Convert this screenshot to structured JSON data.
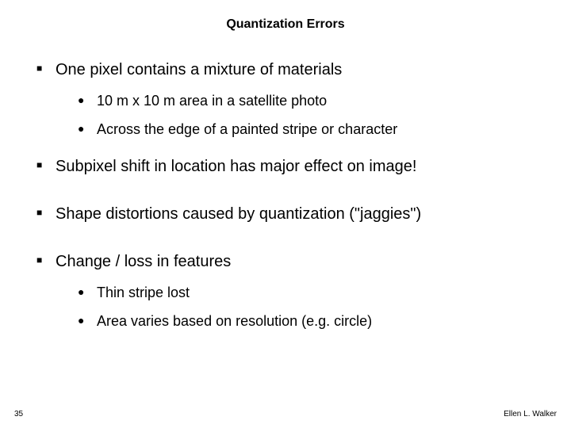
{
  "title": {
    "text": "Quantization Errors",
    "fontsize": 22,
    "fontweight": "bold"
  },
  "colors": {
    "background": "#ffffff",
    "text": "#000000",
    "bullet_square": "#000000",
    "bullet_dot": "#000000"
  },
  "bullets": {
    "level1_char": "■",
    "level2_char": "●",
    "level1_fontsize": 20,
    "level2_fontsize": 18
  },
  "items": [
    {
      "text": "One pixel contains a mixture of materials",
      "children": [
        {
          "text": "10 m x 10 m area in a satellite photo"
        },
        {
          "text": "Across the edge of a painted stripe or character"
        }
      ]
    },
    {
      "text": "Subpixel shift in location has major effect on image!"
    },
    {
      "text": "Shape distortions caused by quantization (\"jaggies\")"
    },
    {
      "text": "Change / loss in features",
      "children": [
        {
          "text": "Thin stripe lost"
        },
        {
          "text": "Area varies based on resolution (e.g. circle)"
        }
      ]
    }
  ],
  "footer": {
    "page_number": "35",
    "author": "Ellen L. Walker"
  }
}
